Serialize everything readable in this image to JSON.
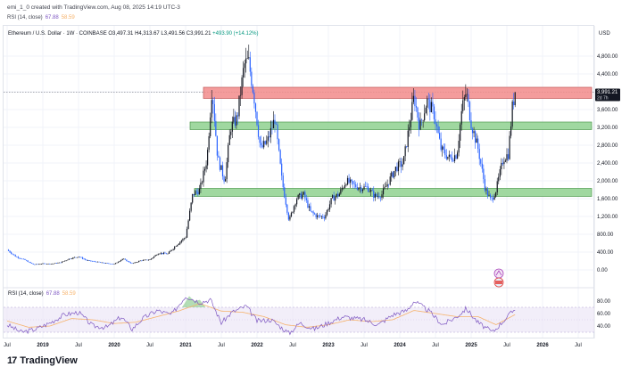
{
  "header": {
    "attribution": "emi_1_0 created with TradingView.com, Aug 08, 2025 14:19 UTC-3"
  },
  "rsi_top": {
    "label": "RSI (14, close)",
    "rsi": "67.88",
    "ma": "58.59"
  },
  "legend": {
    "symbol": "Ethereum / U.S. Dollar · 1W · COINBASE",
    "ohlc": "O3,497.31 H4,313.67 L3,491.56 C3,991.21",
    "change": "+493.90 (+14.12%)"
  },
  "currency": "USD",
  "rsi_pane": {
    "label": "RSI (14, close)",
    "rsi": "67.88",
    "ma": "58.59"
  },
  "price_badge": {
    "value": "3,991.21",
    "countdown": "2d 7h"
  },
  "brand": {
    "logo": "17",
    "name": "TradingView"
  },
  "colors": {
    "up": "#131722",
    "down": "#2962ff",
    "resistance": "#f28b8b",
    "support": "#8fd18f",
    "rsi": "#7e57c2",
    "rsi_ma": "#f6b26b",
    "rsi_band": "#ede7f6"
  },
  "chart_data": [
    {
      "type": "candlestick",
      "symbol": "ETH/USD",
      "interval": "1W",
      "x_ticks": [
        "Jul",
        "2019",
        "Jul",
        "2020",
        "Jul",
        "2021",
        "Jul",
        "2022",
        "Jul",
        "2023",
        "Jul",
        "2024",
        "Jul",
        "2025",
        "Jul",
        "2026",
        "Jul"
      ],
      "y_ticks": [
        "4,800.00",
        "4,400.00",
        "4,000.00",
        "3,600.00",
        "3,200.00",
        "2,800.00",
        "2,400.00",
        "2,000.00",
        "1,600.00",
        "1,200.00",
        "800.00",
        "400.00",
        "0.00"
      ],
      "ylim": [
        -100,
        5000
      ],
      "last_close": 3991.21,
      "zones": [
        {
          "kind": "resistance",
          "from": 3850,
          "to": 4100
        },
        {
          "kind": "support",
          "from": 3150,
          "to": 3320
        },
        {
          "kind": "support",
          "from": 1650,
          "to": 1830
        }
      ],
      "series": [
        {
          "values": [
            [
              2018.5,
              450
            ],
            [
              2018.62,
              300
            ],
            [
              2018.75,
              220
            ],
            [
              2018.87,
              120
            ],
            [
              2019.0,
              140
            ],
            [
              2019.12,
              135
            ],
            [
              2019.25,
              165
            ],
            [
              2019.37,
              250
            ],
            [
              2019.5,
              300
            ],
            [
              2019.62,
              210
            ],
            [
              2019.75,
              180
            ],
            [
              2019.87,
              150
            ],
            [
              2020.0,
              130
            ],
            [
              2020.12,
              250
            ],
            [
              2020.25,
              140
            ],
            [
              2020.37,
              210
            ],
            [
              2020.5,
              230
            ],
            [
              2020.62,
              380
            ],
            [
              2020.75,
              360
            ],
            [
              2020.87,
              560
            ],
            [
              2021.0,
              740
            ],
            [
              2021.1,
              1700
            ],
            [
              2021.2,
              1800
            ],
            [
              2021.3,
              2500
            ],
            [
              2021.37,
              4100
            ],
            [
              2021.45,
              2500
            ],
            [
              2021.55,
              2000
            ],
            [
              2021.63,
              3200
            ],
            [
              2021.72,
              3400
            ],
            [
              2021.82,
              4600
            ],
            [
              2021.88,
              4700
            ],
            [
              2021.95,
              4000
            ],
            [
              2022.05,
              2700
            ],
            [
              2022.15,
              2900
            ],
            [
              2022.25,
              3400
            ],
            [
              2022.35,
              2000
            ],
            [
              2022.45,
              1100
            ],
            [
              2022.55,
              1600
            ],
            [
              2022.65,
              1700
            ],
            [
              2022.75,
              1300
            ],
            [
              2022.85,
              1200
            ],
            [
              2022.95,
              1200
            ],
            [
              2023.05,
              1600
            ],
            [
              2023.15,
              1700
            ],
            [
              2023.25,
              2000
            ],
            [
              2023.35,
              1900
            ],
            [
              2023.45,
              1850
            ],
            [
              2023.55,
              1850
            ],
            [
              2023.65,
              1650
            ],
            [
              2023.75,
              1700
            ],
            [
              2023.85,
              2000
            ],
            [
              2023.95,
              2300
            ],
            [
              2024.05,
              2400
            ],
            [
              2024.15,
              3400
            ],
            [
              2024.2,
              3900
            ],
            [
              2024.28,
              3200
            ],
            [
              2024.38,
              3800
            ],
            [
              2024.48,
              3500
            ],
            [
              2024.58,
              2700
            ],
            [
              2024.7,
              2500
            ],
            [
              2024.8,
              2600
            ],
            [
              2024.87,
              3600
            ],
            [
              2024.93,
              4000
            ],
            [
              2025.0,
              3300
            ],
            [
              2025.1,
              2700
            ],
            [
              2025.2,
              1800
            ],
            [
              2025.28,
              1550
            ],
            [
              2025.35,
              1800
            ],
            [
              2025.45,
              2500
            ],
            [
              2025.52,
              2600
            ],
            [
              2025.58,
              3700
            ],
            [
              2025.62,
              3991
            ]
          ]
        }
      ]
    },
    {
      "type": "line",
      "title": "RSI (14, close)",
      "y_ticks": [
        "80.00",
        "60.00",
        "40.00"
      ],
      "ylim": [
        20,
        95
      ],
      "band": [
        30,
        70
      ],
      "series": [
        {
          "name": "RSI",
          "values": [
            [
              2018.5,
              42
            ],
            [
              2018.7,
              30
            ],
            [
              2018.9,
              35
            ],
            [
              2019.1,
              45
            ],
            [
              2019.3,
              58
            ],
            [
              2019.5,
              62
            ],
            [
              2019.7,
              40
            ],
            [
              2019.9,
              38
            ],
            [
              2020.1,
              55
            ],
            [
              2020.25,
              35
            ],
            [
              2020.4,
              52
            ],
            [
              2020.6,
              65
            ],
            [
              2020.8,
              58
            ],
            [
              2021.0,
              88
            ],
            [
              2021.2,
              78
            ],
            [
              2021.35,
              82
            ],
            [
              2021.5,
              45
            ],
            [
              2021.65,
              62
            ],
            [
              2021.85,
              72
            ],
            [
              2022.0,
              48
            ],
            [
              2022.2,
              50
            ],
            [
              2022.45,
              28
            ],
            [
              2022.6,
              45
            ],
            [
              2022.8,
              35
            ],
            [
              2023.0,
              45
            ],
            [
              2023.2,
              55
            ],
            [
              2023.5,
              50
            ],
            [
              2023.7,
              42
            ],
            [
              2023.9,
              58
            ],
            [
              2024.1,
              65
            ],
            [
              2024.2,
              80
            ],
            [
              2024.4,
              65
            ],
            [
              2024.6,
              42
            ],
            [
              2024.8,
              55
            ],
            [
              2024.93,
              68
            ],
            [
              2025.1,
              45
            ],
            [
              2025.3,
              30
            ],
            [
              2025.45,
              48
            ],
            [
              2025.62,
              68
            ]
          ]
        },
        {
          "name": "MA",
          "values": [
            [
              2018.5,
              48
            ],
            [
              2018.8,
              38
            ],
            [
              2019.1,
              40
            ],
            [
              2019.4,
              52
            ],
            [
              2019.7,
              50
            ],
            [
              2020.0,
              44
            ],
            [
              2020.3,
              46
            ],
            [
              2020.6,
              55
            ],
            [
              2020.9,
              64
            ],
            [
              2021.2,
              76
            ],
            [
              2021.5,
              64
            ],
            [
              2021.8,
              62
            ],
            [
              2022.1,
              55
            ],
            [
              2022.4,
              42
            ],
            [
              2022.7,
              38
            ],
            [
              2023.0,
              42
            ],
            [
              2023.3,
              50
            ],
            [
              2023.6,
              47
            ],
            [
              2023.9,
              50
            ],
            [
              2024.2,
              65
            ],
            [
              2024.5,
              60
            ],
            [
              2024.8,
              55
            ],
            [
              2025.1,
              55
            ],
            [
              2025.35,
              42
            ],
            [
              2025.62,
              58.59
            ]
          ]
        }
      ]
    }
  ]
}
